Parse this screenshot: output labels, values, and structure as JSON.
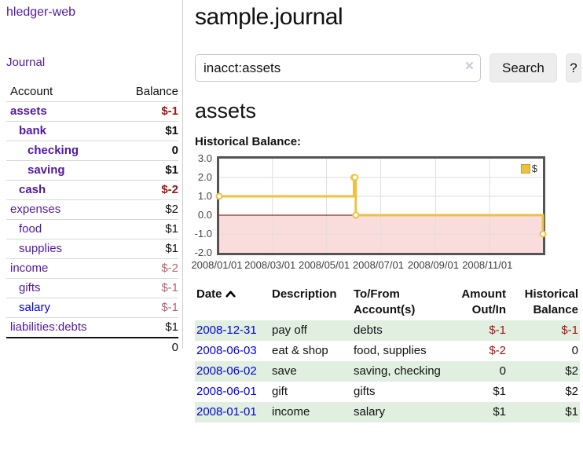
{
  "sidebar": {
    "brand": "hledger-web",
    "nav": {
      "journal": "Journal"
    },
    "accounts_table": {
      "col_account": "Account",
      "col_balance": "Balance",
      "rows": [
        {
          "name": "assets",
          "depth": 1,
          "bold": true,
          "balance": "$-1",
          "balance_tone": "neg-dark"
        },
        {
          "name": "bank",
          "depth": 2,
          "bold": true,
          "balance": "$1",
          "balance_tone": ""
        },
        {
          "name": "checking",
          "depth": 3,
          "bold": true,
          "balance": "0",
          "balance_tone": ""
        },
        {
          "name": "saving",
          "depth": 3,
          "bold": true,
          "balance": "$1",
          "balance_tone": ""
        },
        {
          "name": "cash",
          "depth": 2,
          "bold": true,
          "balance": "$-2",
          "balance_tone": "neg-dark"
        },
        {
          "name": "expenses",
          "depth": 1,
          "bold": false,
          "balance": "$2",
          "balance_tone": ""
        },
        {
          "name": "food",
          "depth": 2,
          "bold": false,
          "balance": "$1",
          "balance_tone": ""
        },
        {
          "name": "supplies",
          "depth": 2,
          "bold": false,
          "balance": "$1",
          "balance_tone": ""
        },
        {
          "name": "income",
          "depth": 1,
          "bold": false,
          "balance": "$-2",
          "balance_tone": "neg-muted"
        },
        {
          "name": "gifts",
          "depth": 2,
          "bold": false,
          "balance": "$-1",
          "balance_tone": "neg-muted"
        },
        {
          "name": "salary",
          "depth": 2,
          "bold": false,
          "balance": "$-1",
          "balance_tone": "neg-muted",
          "link_color": "blue"
        },
        {
          "name": "liabilities:debts",
          "depth": 1,
          "bold": false,
          "balance": "$1",
          "balance_tone": ""
        }
      ],
      "total": "0"
    }
  },
  "header": {
    "title": "sample.journal"
  },
  "search": {
    "value": "inacct:assets",
    "clear_icon": "×",
    "button": "Search",
    "help_button": "?"
  },
  "account_page": {
    "heading": "assets",
    "chart_label": "Historical Balance:"
  },
  "chart_data": {
    "type": "line",
    "title": "Historical Balance",
    "style": "steps",
    "markers": true,
    "series": [
      {
        "name": "$",
        "color": "#edc240",
        "points": [
          [
            "2008-01-01",
            1
          ],
          [
            "2008-06-01",
            2
          ],
          [
            "2008-06-02",
            2
          ],
          [
            "2008-06-03",
            0
          ],
          [
            "2008-12-31",
            -1
          ]
        ]
      }
    ],
    "x_range": [
      "2008-01-01",
      "2008-12-31"
    ],
    "x_ticks": [
      "2008/01/01",
      "2008/03/01",
      "2008/05/01",
      "2008/07/01",
      "2008/09/01",
      "2008/11/01"
    ],
    "y_ticks": [
      3.0,
      2.0,
      1.0,
      0.0,
      -1.0,
      -2.0
    ],
    "ylim": [
      -2,
      3
    ],
    "grid": true,
    "legend_position": "top-right",
    "negative_region_color": "#fbdcdc",
    "zero_line_color": "#800000",
    "grid_color": "#dedede"
  },
  "transactions": {
    "columns": {
      "date": "Date",
      "description": "Description",
      "accounts": "To/From Account(s)",
      "amount": "Amount Out/In",
      "balance": "Historical Balance"
    },
    "rows": [
      {
        "date": "2008-12-31",
        "description": "pay off",
        "accounts": "debts",
        "amount": "$-1",
        "amount_neg": true,
        "balance": "$-1",
        "balance_neg": true,
        "shaded": true
      },
      {
        "date": "2008-06-03",
        "description": "eat & shop",
        "accounts": "food, supplies",
        "amount": "$-2",
        "amount_neg": true,
        "balance": "0",
        "balance_neg": false,
        "shaded": false
      },
      {
        "date": "2008-06-02",
        "description": "save",
        "accounts": "saving, checking",
        "amount": "0",
        "amount_neg": false,
        "balance": "$2",
        "balance_neg": false,
        "shaded": true
      },
      {
        "date": "2008-06-01",
        "description": "gift",
        "accounts": "gifts",
        "amount": "$1",
        "amount_neg": false,
        "balance": "$2",
        "balance_neg": false,
        "shaded": false
      },
      {
        "date": "2008-01-01",
        "description": "income",
        "accounts": "salary",
        "amount": "$1",
        "amount_neg": false,
        "balance": "$1",
        "balance_neg": false,
        "shaded": true
      }
    ]
  }
}
